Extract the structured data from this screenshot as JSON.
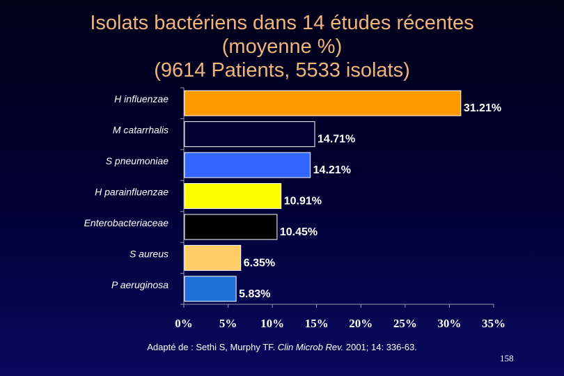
{
  "slide": {
    "title_lines": [
      "Isolats bactériens dans 14 études récentes",
      "(moyenne %)",
      "(9614 Patients, 5533 isolats)"
    ],
    "citation": {
      "before": "Adapté de : Sethi S, Murphy TF. ",
      "journal": "Clin Microb Rev.",
      "after": " 2001; 14: 336-63."
    },
    "slide_number": "158"
  },
  "chart_data": {
    "type": "bar",
    "orientation": "horizontal",
    "categories": [
      "H influenzae",
      "M catarrhalis",
      "S pneumoniae",
      "H parainfluenzae",
      "Enterobacteriaceae",
      "S aureus",
      "P aeruginosa"
    ],
    "values": [
      31.21,
      14.71,
      14.21,
      10.91,
      10.45,
      6.35,
      5.83
    ],
    "data_labels": [
      "31.21%",
      "14.71%",
      "14.21%",
      "10.91%",
      "10.45%",
      "6.35%",
      "5.83%"
    ],
    "bar_colors": [
      "#ff9900",
      "#000033",
      "#3366ff",
      "#ffff00",
      "#000000",
      "#ffcc66",
      "#1f6fd6"
    ],
    "xlim": [
      0,
      35
    ],
    "x_ticks": [
      0,
      5,
      10,
      15,
      20,
      25,
      30,
      35
    ],
    "x_tick_labels": [
      "0%",
      "5%",
      "10%",
      "15%",
      "20%",
      "25%",
      "30%",
      "35%"
    ],
    "grid": false,
    "legend": "none",
    "title": "",
    "xlabel": "",
    "ylabel": ""
  }
}
